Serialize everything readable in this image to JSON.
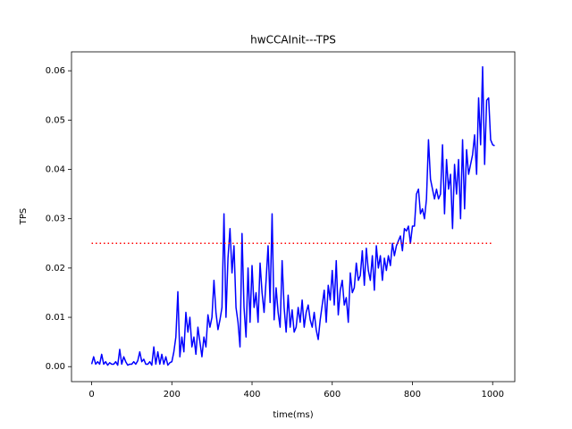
{
  "chart_data": {
    "type": "line",
    "title": "hwCCAInit---TPS",
    "x_label": "time(ms)",
    "y_label": "TPS",
    "series": [
      {
        "color": "#0000ff",
        "linestyle": "solid",
        "x": [
          0,
          5,
          10,
          15,
          20,
          25,
          30,
          35,
          40,
          45,
          50,
          55,
          60,
          65,
          70,
          75,
          80,
          85,
          90,
          95,
          100,
          105,
          110,
          115,
          120,
          125,
          130,
          135,
          140,
          145,
          150,
          155,
          160,
          165,
          170,
          175,
          180,
          185,
          190,
          195,
          200,
          205,
          210,
          215,
          220,
          225,
          230,
          235,
          240,
          245,
          250,
          255,
          260,
          265,
          270,
          275,
          280,
          285,
          290,
          295,
          300,
          305,
          310,
          315,
          320,
          325,
          330,
          335,
          340,
          345,
          350,
          355,
          360,
          365,
          370,
          375,
          380,
          385,
          390,
          395,
          400,
          405,
          410,
          415,
          420,
          425,
          430,
          435,
          440,
          445,
          450,
          455,
          460,
          465,
          470,
          475,
          480,
          485,
          490,
          495,
          500,
          505,
          510,
          515,
          520,
          525,
          530,
          535,
          540,
          545,
          550,
          555,
          560,
          565,
          570,
          575,
          580,
          585,
          590,
          595,
          600,
          605,
          610,
          615,
          620,
          625,
          630,
          635,
          640,
          645,
          650,
          655,
          660,
          665,
          670,
          675,
          680,
          685,
          690,
          695,
          700,
          705,
          710,
          715,
          720,
          725,
          730,
          735,
          740,
          745,
          750,
          755,
          760,
          765,
          770,
          775,
          780,
          785,
          790,
          795,
          800,
          805,
          810,
          815,
          820,
          825,
          830,
          835,
          840,
          845,
          850,
          855,
          860,
          865,
          870,
          875,
          880,
          885,
          890,
          895,
          900,
          905,
          910,
          915,
          920,
          925,
          930,
          935,
          940,
          945,
          950,
          955,
          960,
          965,
          970,
          975,
          980,
          985,
          990,
          995,
          1000,
          1005
        ],
        "values": [
          0.0005,
          0.002,
          0.0005,
          0.001,
          0.0005,
          0.0025,
          0.0005,
          0.001,
          0.0003,
          0.0008,
          0.0005,
          0.0005,
          0.001,
          0.0003,
          0.0035,
          0.0005,
          0.002,
          0.001,
          0.0003,
          0.0005,
          0.0005,
          0.001,
          0.0005,
          0.0012,
          0.003,
          0.001,
          0.0015,
          0.0005,
          0.0005,
          0.001,
          0.0003,
          0.004,
          0.0005,
          0.003,
          0.0005,
          0.0025,
          0.0005,
          0.002,
          0.0003,
          0.0008,
          0.001,
          0.003,
          0.006,
          0.0152,
          0.002,
          0.006,
          0.003,
          0.011,
          0.007,
          0.01,
          0.004,
          0.006,
          0.0025,
          0.008,
          0.005,
          0.002,
          0.006,
          0.004,
          0.0105,
          0.008,
          0.01,
          0.0175,
          0.011,
          0.0075,
          0.0095,
          0.012,
          0.031,
          0.01,
          0.022,
          0.028,
          0.019,
          0.0245,
          0.012,
          0.009,
          0.004,
          0.027,
          0.012,
          0.006,
          0.02,
          0.009,
          0.0205,
          0.012,
          0.015,
          0.009,
          0.021,
          0.015,
          0.011,
          0.0175,
          0.0245,
          0.013,
          0.031,
          0.0095,
          0.016,
          0.011,
          0.008,
          0.0215,
          0.012,
          0.007,
          0.0145,
          0.008,
          0.0115,
          0.007,
          0.008,
          0.012,
          0.009,
          0.0135,
          0.008,
          0.011,
          0.0125,
          0.0095,
          0.008,
          0.011,
          0.0075,
          0.0055,
          0.0095,
          0.0125,
          0.0155,
          0.009,
          0.0165,
          0.0135,
          0.0195,
          0.0125,
          0.0215,
          0.0105,
          0.0155,
          0.0175,
          0.0125,
          0.014,
          0.009,
          0.019,
          0.015,
          0.016,
          0.021,
          0.0175,
          0.0185,
          0.0235,
          0.0165,
          0.024,
          0.0195,
          0.0175,
          0.0225,
          0.0155,
          0.0245,
          0.02,
          0.0225,
          0.0175,
          0.022,
          0.0195,
          0.0225,
          0.0205,
          0.025,
          0.0225,
          0.0245,
          0.0255,
          0.0265,
          0.0235,
          0.028,
          0.0275,
          0.0285,
          0.025,
          0.0285,
          0.0285,
          0.035,
          0.036,
          0.031,
          0.032,
          0.03,
          0.034,
          0.046,
          0.038,
          0.036,
          0.034,
          0.036,
          0.034,
          0.035,
          0.045,
          0.031,
          0.042,
          0.036,
          0.039,
          0.028,
          0.041,
          0.035,
          0.042,
          0.03,
          0.046,
          0.032,
          0.044,
          0.039,
          0.041,
          0.043,
          0.047,
          0.039,
          0.0545,
          0.045,
          0.0608,
          0.041,
          0.054,
          0.0545,
          0.046,
          0.045,
          0.0448
        ]
      },
      {
        "color": "#ff0000",
        "linestyle": "dotted",
        "x": [
          0,
          1000
        ],
        "values": [
          0.025,
          0.025
        ]
      }
    ],
    "xlim": [
      -50.25,
      1055.25
    ],
    "ylim": [
      -0.00304,
      0.06384
    ],
    "xticks": [
      0,
      200,
      400,
      600,
      800,
      1000
    ],
    "yticks": [
      {
        "value": 0,
        "label": "0.00"
      },
      {
        "value": 0.01,
        "label": "0.01"
      },
      {
        "value": 0.02,
        "label": "0.02"
      },
      {
        "value": 0.03,
        "label": "0.03"
      },
      {
        "value": 0.04,
        "label": "0.04"
      },
      {
        "value": 0.05,
        "label": "0.05"
      },
      {
        "value": 0.06,
        "label": "0.06"
      }
    ],
    "grid": false
  }
}
